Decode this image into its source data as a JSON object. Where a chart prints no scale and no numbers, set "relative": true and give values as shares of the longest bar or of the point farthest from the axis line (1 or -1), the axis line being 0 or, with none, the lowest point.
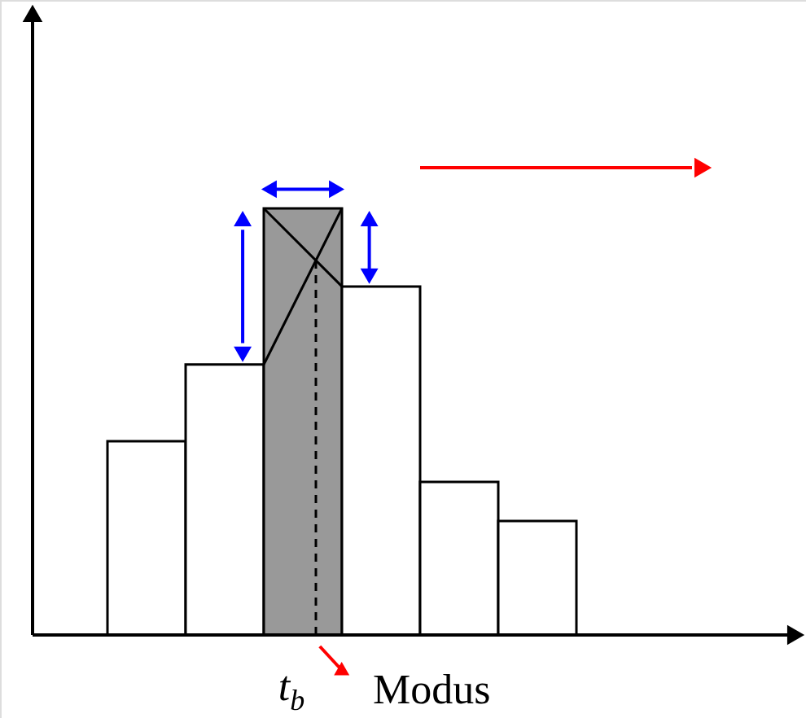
{
  "chart_data": {
    "type": "bar",
    "relative": true,
    "categories": [
      null,
      null,
      null,
      null,
      null,
      null
    ],
    "values": [
      0.454,
      0.634,
      1,
      0.817,
      0.359,
      0.267
    ],
    "colors": [
      "#ffffff",
      "#ffffff",
      "#999999",
      "#ffffff",
      "#ffffff",
      "#ffffff"
    ],
    "annotations": [
      "t$_{b}$",
      "Modus"
    ]
  }
}
